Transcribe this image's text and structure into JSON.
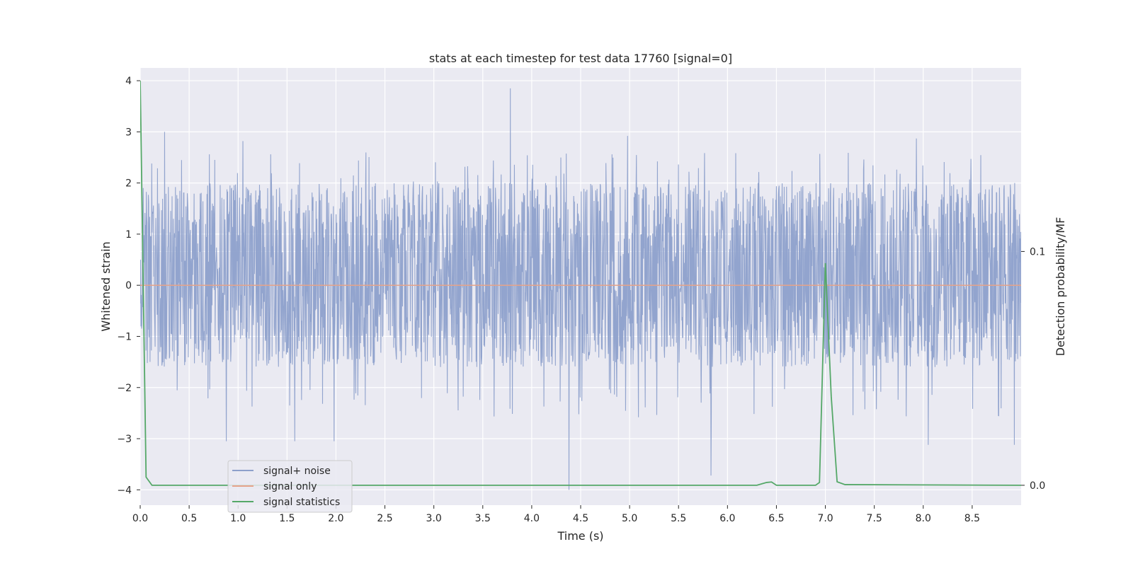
{
  "chart_data": {
    "type": "line",
    "title": "stats at each timestep for test data 17760 [signal=0]",
    "xlabel": "Time (s)",
    "ylabel": "Whitened strain",
    "y2label": "Detection probability/MF",
    "xlim": [
      0,
      9
    ],
    "ylim": [
      -4.3,
      4.25
    ],
    "y2lim": [
      -0.0085,
      0.1785
    ],
    "xticks": [
      0.0,
      0.5,
      1.0,
      1.5,
      2.0,
      2.5,
      3.0,
      3.5,
      4.0,
      4.5,
      5.0,
      5.5,
      6.0,
      6.5,
      7.0,
      7.5,
      8.0,
      8.5
    ],
    "xtick_labels": [
      "0.0",
      "0.5",
      "1.0",
      "1.5",
      "2.0",
      "2.5",
      "3.0",
      "3.5",
      "4.0",
      "4.5",
      "5.0",
      "5.5",
      "6.0",
      "6.5",
      "7.0",
      "7.5",
      "8.0",
      "8.5"
    ],
    "yticks": [
      -4,
      -3,
      -2,
      -1,
      0,
      1,
      2,
      3,
      4
    ],
    "ytick_labels": [
      "−4",
      "−3",
      "−2",
      "−1",
      "0",
      "1",
      "2",
      "3",
      "4"
    ],
    "y2ticks": [
      0.0,
      0.1
    ],
    "y2tick_labels": [
      "0.0",
      "0.1"
    ],
    "grid": true,
    "legend_position": "lower-left",
    "series": [
      {
        "name": "signal+ noise",
        "axis": "left",
        "color": "#8da0cb",
        "style": "dense-noise",
        "typical_range": [
          -1.6,
          2.0
        ],
        "spikes": [
          {
            "x": 3.78,
            "y": 3.85
          },
          {
            "x": 0.25,
            "y": 3.0
          },
          {
            "x": 1.05,
            "y": 2.82
          },
          {
            "x": 4.98,
            "y": 2.92
          },
          {
            "x": 7.93,
            "y": 2.87
          },
          {
            "x": 4.38,
            "y": -4.0
          },
          {
            "x": 5.83,
            "y": -3.72
          },
          {
            "x": 0.88,
            "y": -3.05
          },
          {
            "x": 1.58,
            "y": -3.05
          },
          {
            "x": 1.98,
            "y": -3.05
          },
          {
            "x": 8.05,
            "y": -3.12
          },
          {
            "x": 8.93,
            "y": -3.12
          }
        ]
      },
      {
        "name": "signal only",
        "axis": "left",
        "color": "#e5a38a",
        "x": [
          0,
          9
        ],
        "y": [
          0,
          0
        ]
      },
      {
        "name": "signal statistics",
        "axis": "right",
        "color": "#55a868",
        "x": [
          0.0,
          0.06,
          0.12,
          0.2,
          6.3,
          6.4,
          6.45,
          6.5,
          6.9,
          6.94,
          7.0,
          7.06,
          7.12,
          7.2,
          9.0
        ],
        "y": [
          0.173,
          0.0035,
          0.0,
          0.0,
          0.0,
          0.0012,
          0.0014,
          0.0,
          0.0,
          0.0012,
          0.095,
          0.038,
          0.0015,
          0.0003,
          0.0
        ]
      }
    ],
    "legend": [
      "signal+ noise",
      "signal only",
      "signal statistics"
    ]
  }
}
